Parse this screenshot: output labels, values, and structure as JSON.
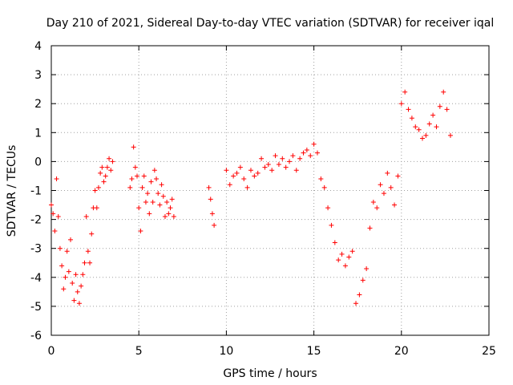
{
  "chart_data": {
    "type": "scatter",
    "title": "Day 210 of 2021, Sidereal Day-to-day VTEC variation (SDTVAR) for receiver iqal",
    "xlabel": "GPS time / hours",
    "ylabel": "SDTVAR / TECUs",
    "xlim": [
      0,
      25
    ],
    "ylim": [
      -6,
      4
    ],
    "xticks": [
      0,
      5,
      10,
      15,
      20,
      25
    ],
    "yticks": [
      -6,
      -5,
      -4,
      -3,
      -2,
      -1,
      0,
      1,
      2,
      3,
      4
    ],
    "grid": true,
    "marker": "+",
    "series_color": "#ff0000",
    "series": [
      {
        "name": "SDTVAR",
        "x": [
          0.0,
          0.1,
          0.2,
          0.3,
          0.4,
          0.5,
          0.6,
          0.7,
          0.8,
          0.9,
          1.0,
          1.1,
          1.2,
          1.3,
          1.4,
          1.5,
          1.6,
          1.7,
          1.8,
          1.9,
          2.0,
          2.1,
          2.2,
          2.3,
          2.4,
          2.5,
          2.6,
          2.7,
          2.8,
          2.9,
          3.0,
          3.1,
          3.2,
          3.3,
          3.4,
          3.5,
          4.5,
          4.6,
          4.7,
          4.8,
          4.9,
          5.0,
          5.1,
          5.2,
          5.3,
          5.4,
          5.5,
          5.6,
          5.7,
          5.8,
          5.9,
          6.0,
          6.1,
          6.2,
          6.3,
          6.4,
          6.5,
          6.6,
          6.7,
          6.8,
          6.9,
          7.0,
          9.0,
          9.1,
          9.2,
          9.3,
          10.0,
          10.2,
          10.4,
          10.6,
          10.8,
          11.0,
          11.2,
          11.4,
          11.6,
          11.8,
          12.0,
          12.2,
          12.4,
          12.6,
          12.8,
          13.0,
          13.2,
          13.4,
          13.6,
          13.8,
          14.0,
          14.2,
          14.4,
          14.6,
          14.8,
          15.0,
          15.2,
          15.4,
          15.6,
          15.8,
          16.0,
          16.2,
          16.4,
          16.6,
          16.8,
          17.0,
          17.2,
          17.4,
          17.6,
          17.8,
          18.0,
          18.2,
          18.4,
          18.6,
          18.8,
          19.0,
          19.2,
          19.4,
          19.6,
          19.8,
          20.0,
          20.2,
          20.4,
          20.6,
          20.8,
          21.0,
          21.2,
          21.4,
          21.6,
          21.8,
          22.0,
          22.2,
          22.4,
          22.6,
          22.8
        ],
        "y": [
          -1.5,
          -1.8,
          -2.4,
          -0.6,
          -1.9,
          -3.0,
          -3.6,
          -4.4,
          -4.0,
          -3.1,
          -3.8,
          -2.7,
          -4.2,
          -4.8,
          -3.9,
          -4.5,
          -4.9,
          -4.3,
          -3.9,
          -3.5,
          -1.9,
          -3.1,
          -3.5,
          -2.5,
          -1.6,
          -1.0,
          -1.6,
          -0.9,
          -0.4,
          -0.2,
          -0.7,
          -0.5,
          -0.2,
          0.1,
          -0.3,
          0.0,
          -0.9,
          -0.6,
          0.5,
          -0.2,
          -0.5,
          -1.6,
          -2.4,
          -0.9,
          -0.5,
          -1.4,
          -1.1,
          -1.8,
          -0.7,
          -1.4,
          -0.3,
          -0.6,
          -1.1,
          -1.5,
          -0.8,
          -1.2,
          -1.9,
          -1.4,
          -1.8,
          -1.6,
          -1.3,
          -1.9,
          -0.9,
          -1.3,
          -1.8,
          -2.2,
          -0.3,
          -0.8,
          -0.5,
          -0.4,
          -0.2,
          -0.6,
          -0.9,
          -0.3,
          -0.5,
          -0.4,
          0.1,
          -0.2,
          -0.1,
          -0.3,
          0.2,
          -0.1,
          0.1,
          -0.2,
          0.0,
          0.2,
          -0.3,
          0.1,
          0.3,
          0.4,
          0.2,
          0.6,
          0.3,
          -0.6,
          -0.9,
          -1.6,
          -2.2,
          -2.8,
          -3.4,
          -3.2,
          -3.6,
          -3.3,
          -3.1,
          -4.9,
          -4.6,
          -4.1,
          -3.7,
          -2.3,
          -1.4,
          -1.6,
          -0.8,
          -1.1,
          -0.4,
          -0.9,
          -1.5,
          -0.5,
          2.0,
          2.4,
          1.8,
          1.5,
          1.2,
          1.1,
          0.8,
          0.9,
          1.3,
          1.6,
          1.2,
          1.9,
          2.4,
          1.8,
          0.9
        ]
      }
    ]
  }
}
